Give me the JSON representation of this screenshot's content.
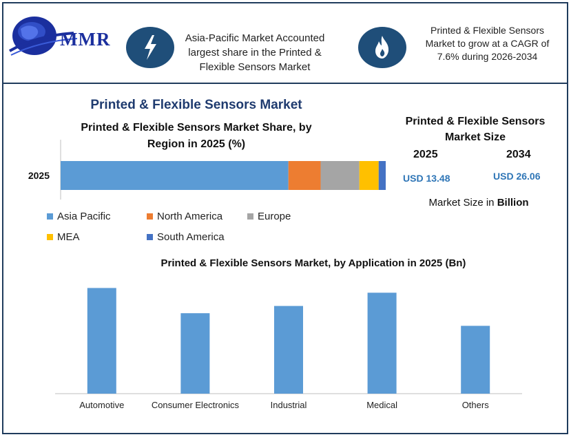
{
  "brand": {
    "name": "MMR"
  },
  "info_cards": [
    {
      "icon": "lightning-bolt-icon",
      "text_lines": [
        "Asia-Pacific Market Accounted",
        "largest share in the Printed &",
        "Flexible Sensors Market"
      ]
    },
    {
      "icon": "flame-icon",
      "text_lines": [
        "Printed & Flexible Sensors",
        "Market to grow at a CAGR of",
        "7.6% during 2026-2034"
      ]
    }
  ],
  "main_title": "Printed & Flexible Sensors Market",
  "market_size": {
    "title_lines": [
      "Printed & Flexible Sensors",
      "Market Size"
    ],
    "years": [
      {
        "year": "2025",
        "value": "USD 13.48"
      },
      {
        "year": "2034",
        "value": "USD 26.06"
      }
    ],
    "note_prefix": "Market Size in ",
    "note_bold": "Billion"
  },
  "colors": {
    "asia_pacific": "#5b9bd5",
    "north_america": "#ed7d31",
    "europe": "#a5a5a5",
    "mea": "#ffc000",
    "south_america": "#4472c4",
    "bar": "#5b9bd5",
    "accent": "#1f4e79"
  },
  "chart_data": [
    {
      "type": "bar",
      "orientation": "horizontal-stacked",
      "title_lines": [
        "Printed & Flexible Sensors Market Share, by",
        "Region in 2025 (%)"
      ],
      "categories": [
        "2025"
      ],
      "series": [
        {
          "name": "Asia Pacific",
          "values": [
            53
          ]
        },
        {
          "name": "North America",
          "values": [
            7.5
          ]
        },
        {
          "name": "Europe",
          "values": [
            9
          ]
        },
        {
          "name": "MEA",
          "values": [
            4.5
          ]
        },
        {
          "name": "South America",
          "values": [
            3
          ]
        }
      ],
      "xlim": [
        0,
        100
      ],
      "legend": "bottom",
      "grid": false
    },
    {
      "type": "bar",
      "title": "Printed & Flexible Sensors Market, by Application in 2025 (Bn)",
      "categories": [
        "Automotive",
        "Consumer Electronics",
        "Industrial",
        "Medical",
        "Others"
      ],
      "values": [
        3.35,
        2.55,
        2.78,
        3.2,
        2.15
      ],
      "ylim": [
        0,
        3.6
      ],
      "grid": false
    }
  ]
}
